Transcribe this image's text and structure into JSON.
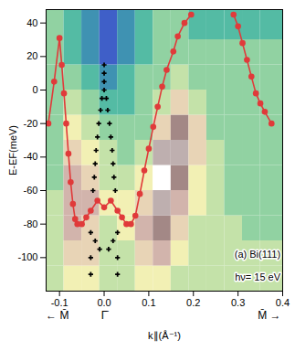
{
  "chart_data": {
    "type": "line",
    "x_label": "k∥(Å⁻¹)",
    "y_label": "E-EF(meV)",
    "xlim": [
      -0.13,
      0.4
    ],
    "ylim": [
      -120,
      48
    ],
    "xticks": [
      -0.1,
      {
        "value": 0,
        "label": "0.0"
      },
      0.1,
      0.2,
      0.3,
      0.4
    ],
    "yticks": [
      -100,
      -80,
      -60,
      -40,
      -20,
      0,
      20,
      40
    ],
    "intensity": {
      "x_edges": [
        -0.13,
        -0.09,
        -0.05,
        -0.01,
        0.03,
        0.07,
        0.11,
        0.15,
        0.19,
        0.23,
        0.27,
        0.31,
        0.35,
        0.4
      ],
      "y_edges": [
        -120,
        -105,
        -90,
        -75,
        -60,
        -45,
        -30,
        -15,
        0,
        15,
        30,
        48
      ],
      "values": [
        [
          4,
          5,
          5,
          4,
          4,
          5,
          5,
          4,
          4,
          4,
          4,
          4,
          4
        ],
        [
          4,
          6,
          6,
          4,
          4,
          6,
          7,
          5,
          4,
          4,
          4,
          4,
          4
        ],
        [
          4,
          7,
          6,
          4,
          5,
          7,
          8,
          6,
          4,
          4,
          4,
          3,
          3
        ],
        [
          4,
          7,
          7,
          5,
          5,
          6,
          9,
          7,
          5,
          4,
          3,
          3,
          3
        ],
        [
          3,
          7,
          6,
          4,
          4,
          5,
          10,
          8,
          5,
          4,
          3,
          3,
          3
        ],
        [
          3,
          6,
          5,
          4,
          3,
          4,
          9,
          9,
          6,
          4,
          3,
          3,
          3
        ],
        [
          3,
          5,
          4,
          3,
          3,
          3,
          6,
          8,
          6,
          3,
          3,
          3,
          3
        ],
        [
          3,
          4,
          3,
          2,
          2,
          3,
          4,
          6,
          4,
          3,
          3,
          3,
          3
        ],
        [
          3,
          3,
          2,
          1,
          2,
          3,
          3,
          4,
          3,
          3,
          3,
          3,
          3
        ],
        [
          3,
          2,
          1,
          0,
          1,
          2,
          3,
          3,
          3,
          3,
          3,
          3,
          3
        ],
        [
          3,
          2,
          1,
          0,
          1,
          2,
          3,
          3,
          2,
          2,
          2,
          2,
          2
        ]
      ]
    },
    "series": [
      {
        "type": "line",
        "color": "#e03a3a",
        "marker": "circle",
        "x": [
          -0.125,
          -0.112,
          -0.1,
          -0.095,
          -0.09,
          -0.085,
          -0.08,
          -0.075,
          -0.07,
          -0.065,
          -0.06,
          -0.05,
          -0.04,
          -0.03,
          -0.015,
          0,
          0.015,
          0.03,
          0.04,
          0.05,
          0.06,
          0.07,
          0.08,
          0.09,
          0.1,
          0.11,
          0.12,
          0.13,
          0.14,
          0.155,
          0.165,
          0.18,
          0.195,
          0.24,
          0.29,
          0.3,
          0.31,
          0.32,
          0.33,
          0.34,
          0.35,
          0.36,
          0.375
        ],
        "values": [
          -20,
          5,
          31,
          15,
          -2,
          -20,
          -38,
          -55,
          -68,
          -77,
          -80,
          -80,
          -76,
          -72,
          -66,
          -70,
          -66,
          -72,
          -76,
          -80,
          -80,
          -75,
          -62,
          -48,
          -35,
          -22,
          -10,
          2,
          12,
          23,
          32,
          40,
          45,
          null,
          45,
          38,
          28,
          18,
          8,
          -2,
          -8,
          -13,
          -20
        ]
      },
      {
        "type": "scatter",
        "color": "#000000",
        "marker": "plus",
        "x": [
          0,
          0,
          0,
          0,
          -0.005,
          0.005,
          -0.008,
          0.008,
          -0.012,
          0.012,
          -0.015,
          0.015,
          -0.018,
          0.018,
          -0.02,
          0.02,
          -0.022,
          0.022,
          -0.025,
          0.025,
          -0.03,
          0.03,
          -0.02,
          0.02,
          -0.03,
          0.03,
          -0.03,
          0.03,
          -0.01,
          0.01
        ],
        "values": [
          15,
          10,
          5,
          0,
          -5,
          -5,
          -12,
          -12,
          -20,
          -20,
          -28,
          -28,
          -36,
          -36,
          -44,
          -44,
          -52,
          -52,
          -60,
          -60,
          -85,
          -85,
          -90,
          -90,
          -100,
          -100,
          -110,
          -110,
          -95,
          -95
        ]
      }
    ],
    "annotations": [
      {
        "text": "← M̄",
        "x": -0.105
      },
      {
        "text": "Γ̄",
        "x": 0
      },
      {
        "text": "M̄ →",
        "x": 0.37
      },
      {
        "text": "(a) Bi(111)",
        "x": 0.395,
        "y": -98
      },
      {
        "text": "hν= 15 eV",
        "x": 0.395,
        "y": -112
      }
    ]
  }
}
